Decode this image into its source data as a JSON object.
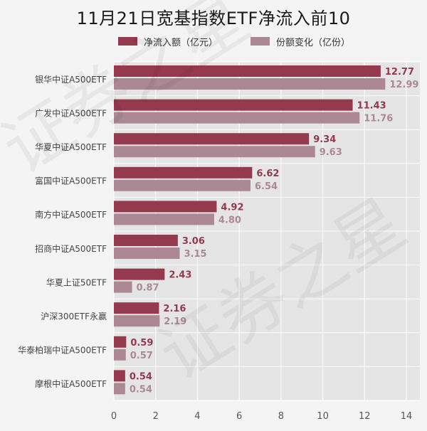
{
  "chart_data": {
    "type": "bar",
    "orientation": "horizontal",
    "title": "11月21日宽基指数ETF净流入前10",
    "categories": [
      "银华中证A500ETF",
      "广发中证A500ETF",
      "华夏中证A500ETF",
      "富国中证A500ETF",
      "南方中证A500ETF",
      "招商中证A500ETF",
      "华夏上证50ETF",
      "沪深300ETF永赢",
      "华泰柏瑞中证A500ETF",
      "摩根中证A500ETF"
    ],
    "series": [
      {
        "name": "净流入额（亿元）",
        "color": "#94394e",
        "values": [
          12.77,
          11.43,
          9.34,
          6.62,
          4.92,
          3.06,
          2.43,
          2.16,
          0.59,
          0.54
        ],
        "labels": [
          "12.77",
          "11.43",
          "9.34",
          "6.62",
          "4.92",
          "3.06",
          "2.43",
          "2.16",
          "0.59",
          "0.54"
        ]
      },
      {
        "name": "份额变化（亿份）",
        "color": "#ab8893",
        "values": [
          12.99,
          11.76,
          9.63,
          6.54,
          4.8,
          3.15,
          0.87,
          2.19,
          0.57,
          0.54
        ],
        "labels": [
          "12.99",
          "11.76",
          "9.63",
          "6.54",
          "4.80",
          "3.15",
          "0.87",
          "2.19",
          "0.57",
          "0.54"
        ]
      }
    ],
    "xlim": [
      0,
      14
    ],
    "xticks": [
      "0",
      "2",
      "4",
      "6",
      "8",
      "10",
      "12",
      "14"
    ],
    "grid": true,
    "legend_position": "top-center"
  },
  "watermark": "证券之星"
}
